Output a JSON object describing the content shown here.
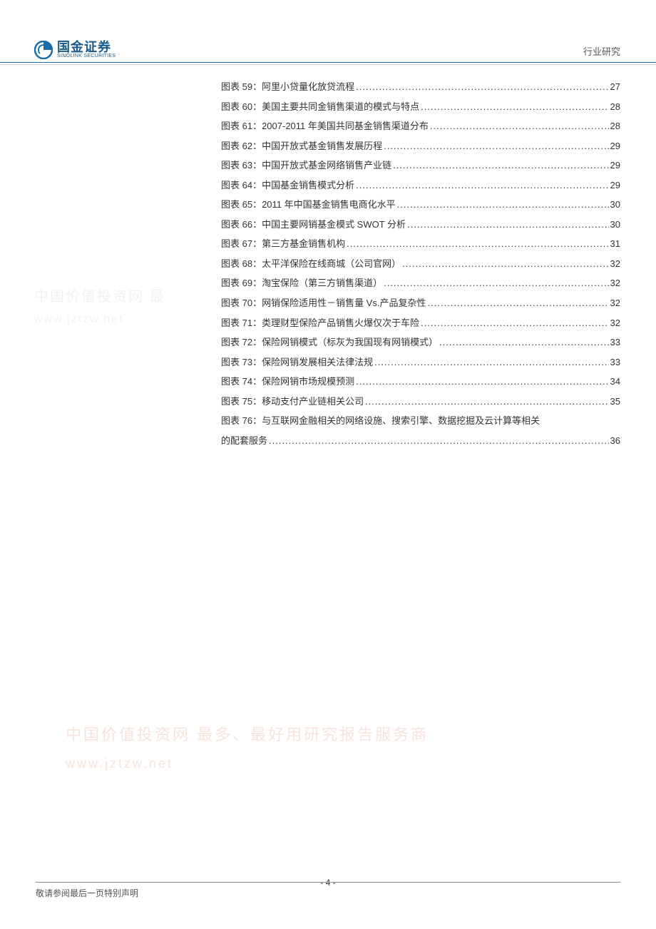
{
  "header": {
    "logo_cn": "国金证券",
    "logo_en": "SINOLINK SECURITIES",
    "right_text": "行业研究"
  },
  "toc": {
    "items": [
      {
        "prefix": "图表 59：",
        "title": "阿里小贷量化放贷流程",
        "page": "27"
      },
      {
        "prefix": "图表 60：",
        "title": "美国主要共同金销售渠道的模式与特点",
        "page": "28"
      },
      {
        "prefix": "图表 61：",
        "title": "2007-2011 年美国共同基金销售渠道分布",
        "page": "28"
      },
      {
        "prefix": "图表 62：",
        "title": "中国开放式基金销售发展历程",
        "page": "29"
      },
      {
        "prefix": "图表 63：",
        "title": "中国开放式基金网络销售产业链",
        "page": "29"
      },
      {
        "prefix": "图表 64：",
        "title": "中国基金销售模式分析",
        "page": "29"
      },
      {
        "prefix": "图表 65：",
        "title": "2011 年中国基金销售电商化水平",
        "page": "30"
      },
      {
        "prefix": "图表 66：",
        "title": "中国主要网销基金模式 SWOT 分析",
        "page": "30"
      },
      {
        "prefix": "图表 67：",
        "title": "第三方基金销售机构",
        "page": "31"
      },
      {
        "prefix": "图表 68：",
        "title": "太平洋保险在线商城（公司官网）",
        "page": "32"
      },
      {
        "prefix": "图表 69：",
        "title": "淘宝保险（第三方销售渠道）",
        "page": "32"
      },
      {
        "prefix": "图表 70：",
        "title": "网销保险适用性－销售量 Vs.产品复杂性",
        "page": "32"
      },
      {
        "prefix": "图表 71：",
        "title": "类理财型保险产品销售火爆仅次于车险",
        "page": "32"
      },
      {
        "prefix": "图表 72：",
        "title": "保险网销模式（标灰为我国现有网销模式）",
        "page": "33"
      },
      {
        "prefix": "图表 73：",
        "title": "保险网销发展相关法律法规",
        "page": "33"
      },
      {
        "prefix": "图表 74：",
        "title": "保险网销市场规模预测",
        "page": "34"
      },
      {
        "prefix": "图表 75：",
        "title": "移动支付产业链相关公司",
        "page": "35"
      }
    ],
    "last_item": {
      "line1": "图表 76：与互联网金融相关的网络设施、搜索引擎、数据挖掘及云计算等相关",
      "line2_prefix": "的配套服务",
      "page": "36"
    }
  },
  "watermarks": {
    "wm1_line1": "中国价值投资网  最",
    "wm1_url": "www.jztzw.net",
    "wm2_line1": "中国价值投资网 最多、最好用研究报告服务商",
    "wm2_url": "www.jztzw.net"
  },
  "footer": {
    "page_number": "- 4 -",
    "note": "敬请参阅最后一页特别声明"
  },
  "colors": {
    "header_border": "#1a6faa",
    "text": "#333333",
    "logo": "#1a5a8a",
    "wm_gray": "#f2f2f2",
    "wm_orange": "#f6e4dc"
  }
}
